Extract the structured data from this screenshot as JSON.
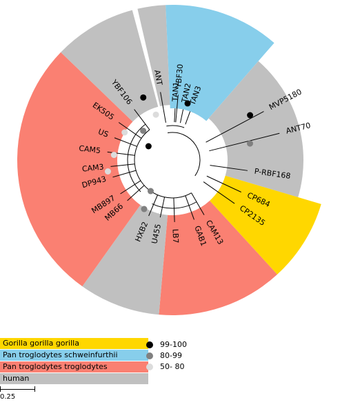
{
  "groups": [
    {
      "key": "gorilla",
      "label": "Gorilla gorilla gorilla",
      "color": "#ffd700"
    },
    {
      "key": "schweinfurthii",
      "label": "Pan troglodytes schweinfurthii",
      "color": "#87ceeb"
    },
    {
      "key": "troglodytes",
      "label": "Pan troglodytes troglodytes",
      "color": "#fa8072"
    },
    {
      "key": "human",
      "label": "human",
      "color": "#c0c0c0"
    }
  ],
  "support": [
    {
      "label": "99-100",
      "color": "#000000"
    },
    {
      "label": "80-99",
      "color": "#808080"
    },
    {
      "label": "50- 80",
      "color": "#dcdcdc"
    }
  ],
  "scale_label": "0.25",
  "taxa": [
    {
      "label": "YBF30",
      "group": "human"
    },
    {
      "label": "ANT",
      "group": "schweinfurthii"
    },
    {
      "label": "TAN1",
      "group": "schweinfurthii"
    },
    {
      "label": "TAN2",
      "group": "schweinfurthii"
    },
    {
      "label": "TAN3",
      "group": "schweinfurthii"
    },
    {
      "label": "MVP5180",
      "group": "human"
    },
    {
      "label": "ANT70",
      "group": "human"
    },
    {
      "label": "P-RBF168",
      "group": "human"
    },
    {
      "label": "CP684",
      "group": "gorilla"
    },
    {
      "label": "CP2135",
      "group": "gorilla"
    },
    {
      "label": "CAM13",
      "group": "troglodytes"
    },
    {
      "label": "GAB1",
      "group": "troglodytes"
    },
    {
      "label": "LB7",
      "group": "troglodytes"
    },
    {
      "label": "U455",
      "group": "human"
    },
    {
      "label": "HXB2",
      "group": "human"
    },
    {
      "label": "MB66",
      "group": "troglodytes"
    },
    {
      "label": "MB897",
      "group": "troglodytes"
    },
    {
      "label": "DP943",
      "group": "troglodytes"
    },
    {
      "label": "CAM3",
      "group": "troglodytes"
    },
    {
      "label": "CAM5",
      "group": "troglodytes"
    },
    {
      "label": "US",
      "group": "troglodytes"
    },
    {
      "label": "EK505",
      "group": "troglodytes"
    },
    {
      "label": "YBF106",
      "group": "human"
    }
  ]
}
